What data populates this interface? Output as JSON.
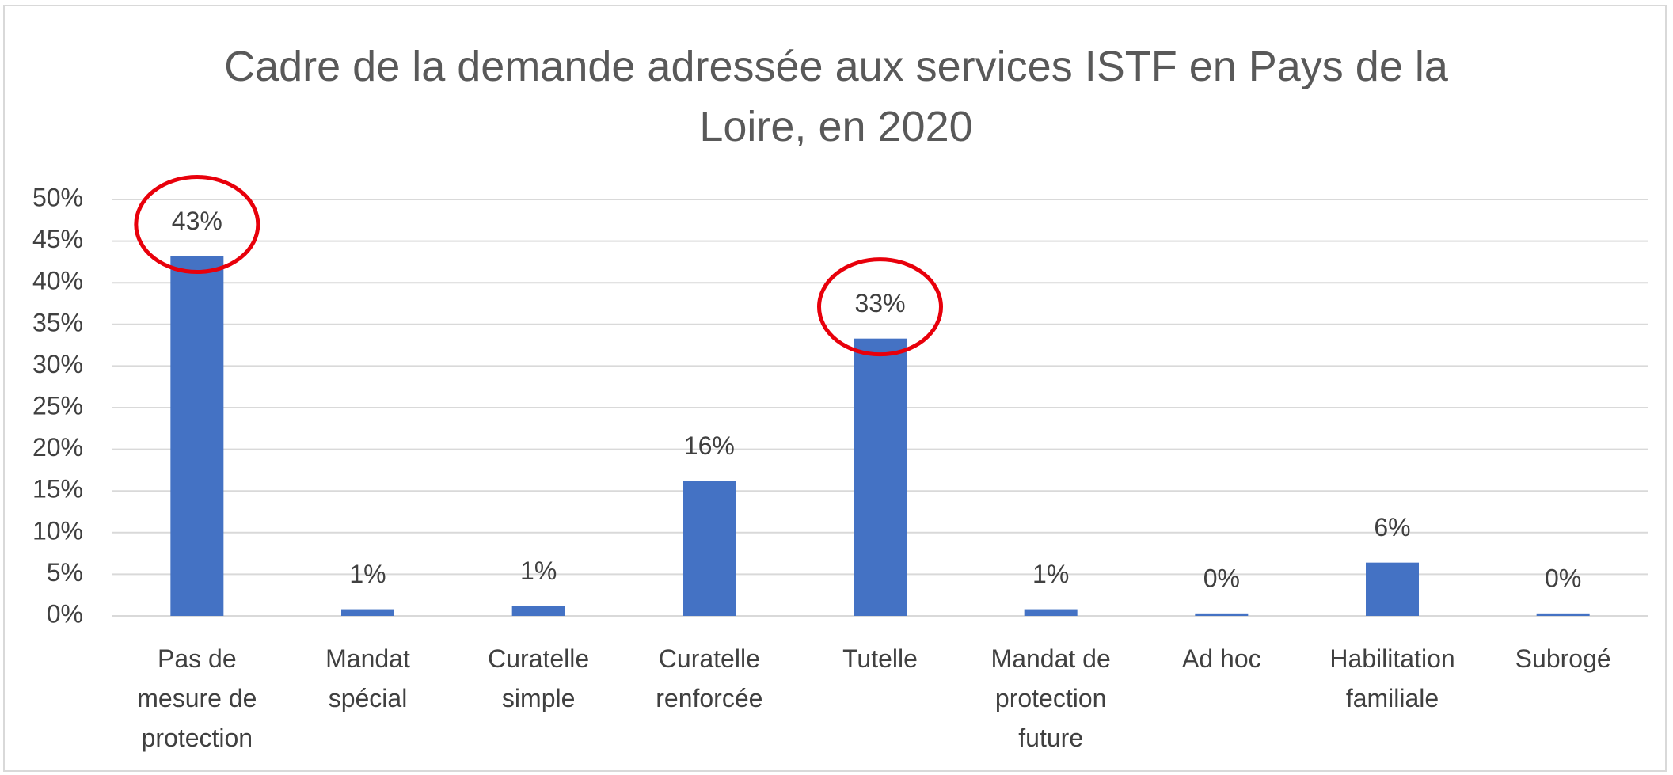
{
  "chart_data": {
    "type": "bar",
    "title": "Cadre de la demande adressée aux services ISTF en Pays de la Loire, en 2020",
    "categories": [
      "Pas de mesure de protection",
      "Mandat spécial",
      "Curatelle simple",
      "Curatelle renforcée",
      "Tutelle",
      "Mandat de protection future",
      "Ad hoc",
      "Habilitation familiale",
      "Subrogé"
    ],
    "values": [
      43.2,
      0.8,
      1.2,
      16.2,
      33.3,
      0.8,
      0.3,
      6.4,
      0.3
    ],
    "value_labels": [
      "43%",
      "1%",
      "1%",
      "16%",
      "33%",
      "1%",
      "0%",
      "6%",
      "0%"
    ],
    "color": "#4472c4",
    "ylim": [
      0,
      50
    ],
    "yticks": [
      {
        "value": 0,
        "label": "0%"
      },
      {
        "value": 5,
        "label": "5%"
      },
      {
        "value": 10,
        "label": "10%"
      },
      {
        "value": 15,
        "label": "15%"
      },
      {
        "value": 20,
        "label": "20%"
      },
      {
        "value": 25,
        "label": "25%"
      },
      {
        "value": 30,
        "label": "30%"
      },
      {
        "value": 35,
        "label": "35%"
      },
      {
        "value": 40,
        "label": "40%"
      },
      {
        "value": 45,
        "label": "45%"
      },
      {
        "value": 50,
        "label": "50%"
      }
    ],
    "grid": true,
    "highlight": {
      "indices": [
        0,
        4
      ],
      "color": "#e8000b"
    }
  }
}
